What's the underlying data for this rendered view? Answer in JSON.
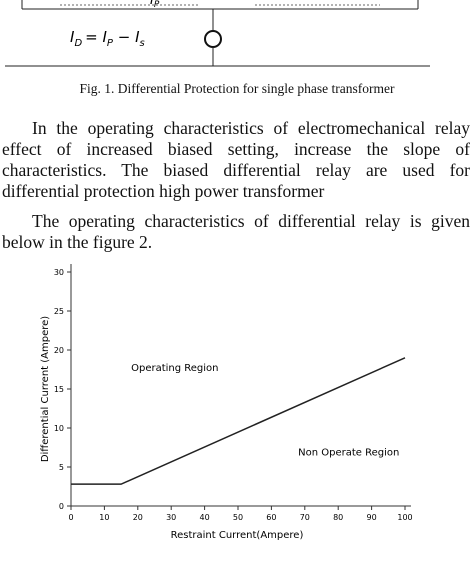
{
  "figure1": {
    "top_label": [
      "I",
      "P"
    ],
    "equation": [
      "I",
      "D",
      "= ",
      "I",
      "P",
      " − ",
      "I",
      "s"
    ],
    "caption": "Fig. 1.   Differential Protection for single phase transformer"
  },
  "paragraphs": [
    [
      "In the operating characteristics of electromechanical relay",
      "effect of increased biased setting, increase the slope of",
      "characteristics. The biased differential relay are used for",
      "differential protection high power transformer"
    ],
    [
      "The operating characteristics of differential relay is given",
      "below in the figure 2."
    ]
  ],
  "chart_data": {
    "type": "line",
    "x_label": "Restraint Current(Ampere)",
    "y_label": "Differential Current (Ampere)",
    "x": [
      0,
      15,
      100
    ],
    "series": [
      {
        "color": "#222222",
        "values": [
          2.8,
          2.8,
          19
        ]
      }
    ],
    "xlim": [
      0,
      100
    ],
    "xticks": [
      0,
      10,
      20,
      30,
      40,
      50,
      60,
      70,
      80,
      90,
      100
    ],
    "ylim": [
      0,
      30
    ],
    "yticks": [
      0,
      5,
      10,
      15,
      20,
      25,
      30
    ],
    "annotations": [
      {
        "text": "Operating Region",
        "x": 18,
        "y": 17.3
      },
      {
        "text": "Non Operate Region",
        "x": 68,
        "y": 6.5
      }
    ]
  }
}
